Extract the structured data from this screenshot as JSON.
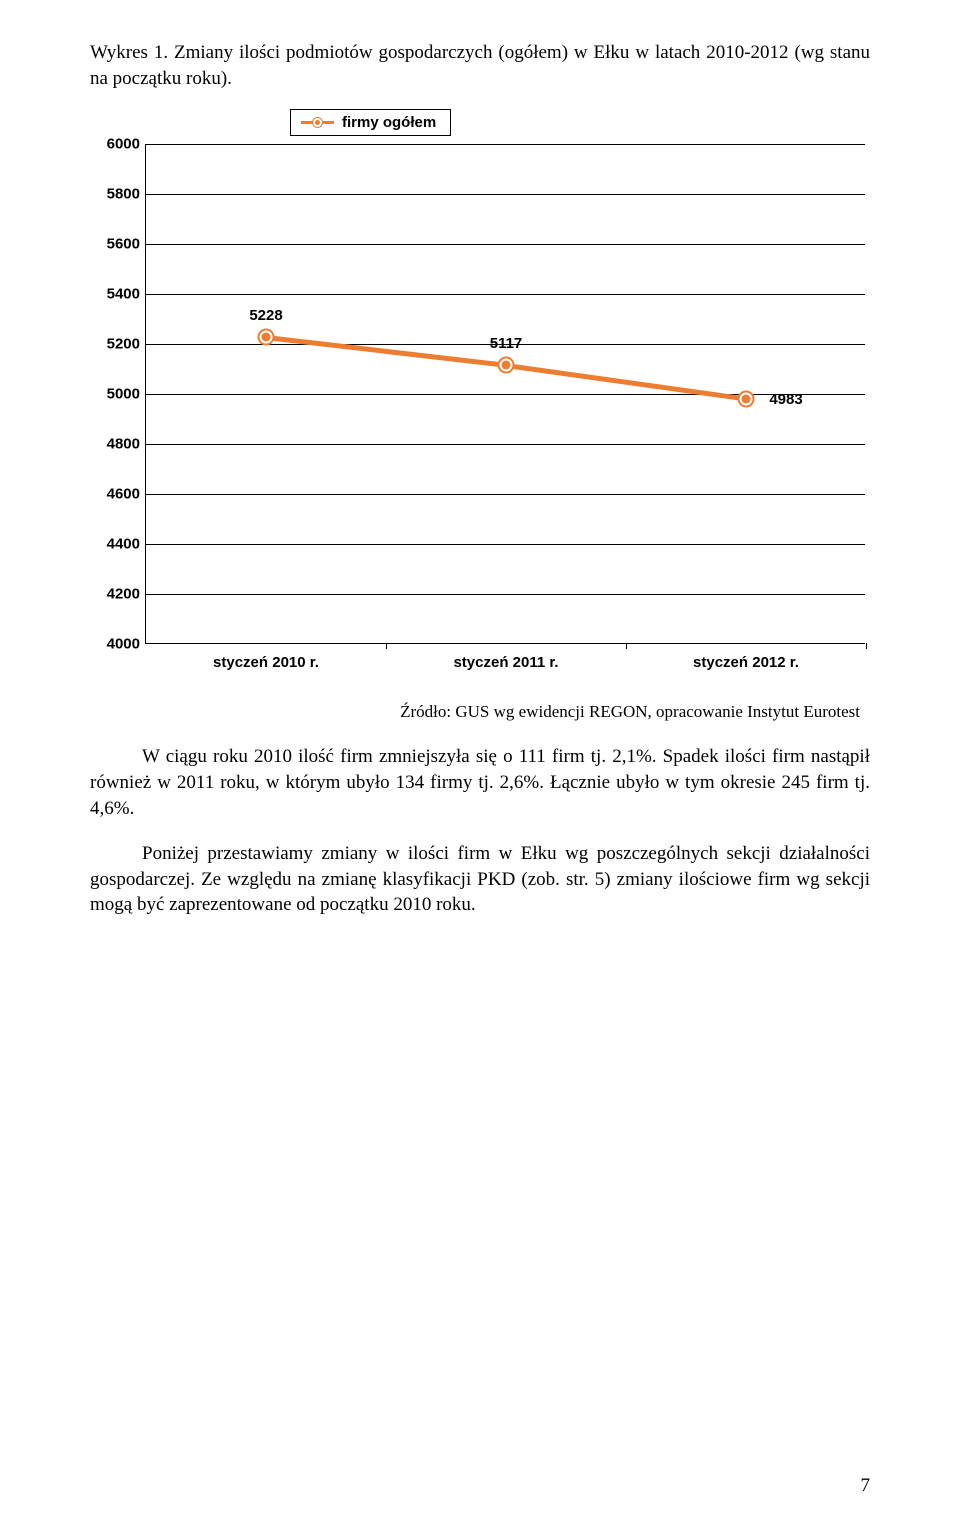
{
  "chart_title": "Wykres 1. Zmiany ilości podmiotów gospodarczych (ogółem) w Ełku w latach 2010-2012 (wg stanu na początku roku).",
  "legend_label": "firmy ogółem",
  "chart": {
    "type": "line",
    "series_color": "#ed7d31",
    "line_width": 5,
    "marker_size": 13,
    "background_color": "#ffffff",
    "grid_color": "#000000",
    "ylim": [
      4000,
      6000
    ],
    "ytick_step": 200,
    "yticks": [
      6000,
      5800,
      5600,
      5400,
      5200,
      5000,
      4800,
      4600,
      4400,
      4200,
      4000
    ],
    "categories": [
      "styczeń 2010 r.",
      "styczeń 2011 r.",
      "styczeń 2012 r."
    ],
    "values": [
      5228,
      5117,
      4983
    ],
    "label_fontsize": 15,
    "label_fontweight": "bold"
  },
  "source_text": "Źródło: GUS wg ewidencji REGON, opracowanie Instytut Eurotest",
  "para1": "W ciągu roku 2010 ilość firm  zmniejszyła się o 111 firm tj. 2,1%. Spadek ilości firm nastąpił  również w 2011 roku, w którym ubyło 134 firmy tj. 2,6%. Łącznie ubyło w tym okresie 245 firm tj. 4,6%.",
  "para2": "Poniżej przestawiamy zmiany w  ilości firm w Ełku wg poszczególnych sekcji działalności gospodarczej. Ze względu na zmianę klasyfikacji PKD (zob. str. 5)  zmiany ilościowe firm wg sekcji mogą być zaprezentowane od początku 2010 roku.",
  "page_number": "7"
}
